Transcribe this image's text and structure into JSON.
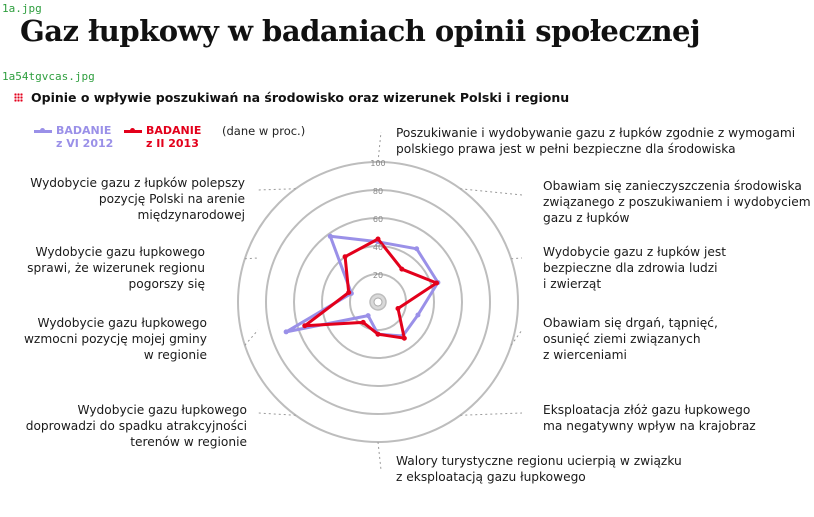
{
  "file_labels": [
    "1a.jpg",
    "1a54tgvcas.jpg"
  ],
  "title": "Gaz łupkowy w badaniach opinii społecznej",
  "subtitle": "Opinie o wpływie poszukiwań na środowisko oraz wizerunek Polski i regionu",
  "units_note": "(dane w proc.)",
  "colors": {
    "series_1": "#9a90e8",
    "series_2": "#e3001b",
    "grid": "#bdbdbd"
  },
  "legend": [
    {
      "line1": "BADANIE",
      "line2": "z VI 2012"
    },
    {
      "line1": "BADANIE",
      "line2": "z II 2013"
    }
  ],
  "chart_data": {
    "type": "radar",
    "title": "Opinie o wpływie poszukiwań na środowisko oraz wizerunek Polski i regionu",
    "r_ticks": [
      "20",
      "40",
      "60",
      "80",
      "100"
    ],
    "r_range": [
      0,
      100
    ],
    "categories": [
      "Poszukiwanie i wydobywanie gazu z łupków zgodnie z wymogami polskiego prawa jest w pełni bezpieczne dla środowiska",
      "Obawiam się zanieczyszczenia środowiska związanego z poszukiwaniem i wydobyciem gazu z łupków",
      "Wydobycie gazu z łupków jest bezpieczne dla zdrowia ludzi i zwierząt",
      "Obawiam się drgań, tąpnięć, osunięć ziemi związanych z wierceniami",
      "Eksploatacja złóż gazu łupkowego ma negatywny wpływ na krajobraz",
      "Walory turystyczne regionu ucierpią w związku z eksploatacją gazu łupkowego",
      "Wydobycie gazu łupkowego doprowadzi do spadku atrakcyjności terenów w regionie",
      "Wydobycie gazu łupkowego wzmocni pozycję mojej gminy w regionie",
      "Wydobycie gazu łupkowego sprawi, że wizerunek regionu pogorszy się",
      "Wydobycie gazu z łupków polepszy pozycję Polski na arenie międzynarodowej"
    ],
    "series": [
      {
        "name": "BADANIE z VI 2012",
        "values": [
          43,
          47,
          45,
          30,
          30,
          23,
          12,
          69,
          20,
          58
        ]
      },
      {
        "name": "BADANIE z II 2013",
        "values": [
          45,
          29,
          44,
          15,
          32,
          23,
          18,
          55,
          22,
          40
        ]
      }
    ]
  },
  "labels": [
    {
      "l1": "Poszukiwanie i wydobywanie gazu z łupków zgodnie z wymogami",
      "l2": "polskiego prawa jest w pełni bezpieczne dla środowiska"
    },
    {
      "l1": "Obawiam się zanieczyszczenia środowiska",
      "l2": "związanego z poszukiwaniem i wydobyciem",
      "l3": "gazu z łupków"
    },
    {
      "l1": "Wydobycie gazu z łupków jest",
      "l2": "bezpieczne dla zdrowia ludzi",
      "l3": "i zwierząt"
    },
    {
      "l1": "Obawiam się drgań, tąpnięć,",
      "l2": "osunięć ziemi związanych",
      "l3": "z wierceniami"
    },
    {
      "l1": "Eksploatacja złóż gazu łupkowego",
      "l2": "ma negatywny wpływ na krajobraz"
    },
    {
      "l1": "Walory turystyczne regionu ucierpią w związku",
      "l2": "z eksploatacją gazu łupkowego"
    },
    {
      "l1": "Wydobycie gazu łupkowego",
      "l2": "doprowadzi do spadku atrakcyjności",
      "l3": "terenów w regionie"
    },
    {
      "l1": "Wydobycie gazu łupkowego",
      "l2": "wzmocni pozycję mojej gminy",
      "l3": "w regionie"
    },
    {
      "l1": "Wydobycie gazu łupkowego",
      "l2": "sprawi, że wizerunek regionu",
      "l3": "pogorszy się"
    },
    {
      "l1": "Wydobycie gazu z łupków polepszy",
      "l2": "pozycję Polski na arenie",
      "l3": "międzynarodowej"
    }
  ]
}
